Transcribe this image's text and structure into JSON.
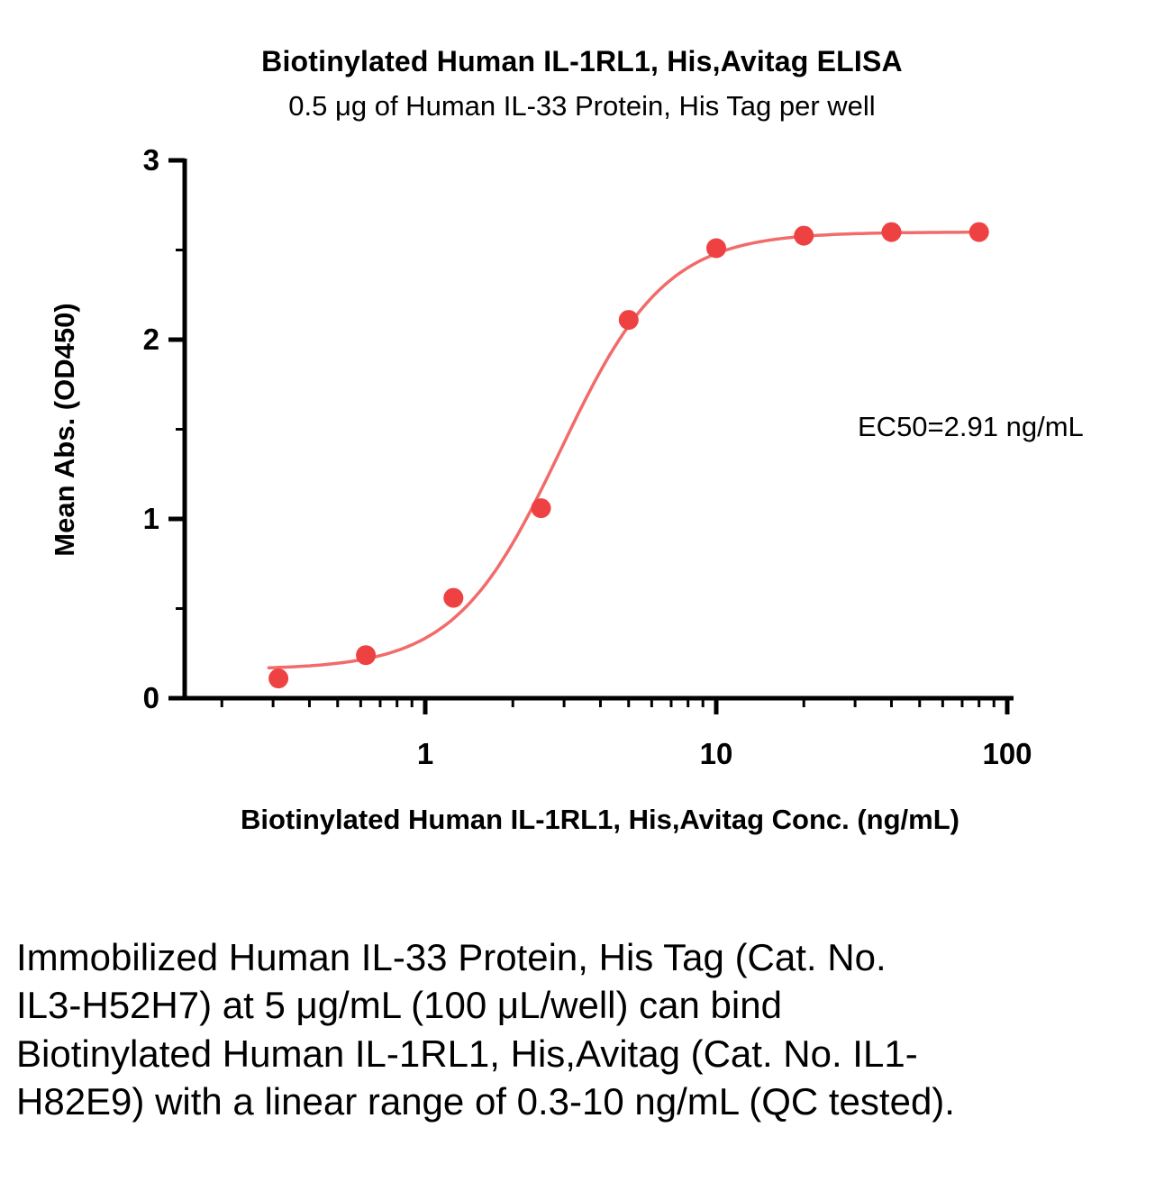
{
  "chart": {
    "title": "Biotinylated Human IL-1RL1, His,Avitag ELISA",
    "subtitle": "0.5 μg of Human IL-33 Protein, His Tag per well",
    "xlabel": "Biotinylated Human IL-1RL1, His,Avitag Conc. (ng/mL)",
    "ylabel": "Mean Abs. (OD450)",
    "annotation": "EC50=2.91 ng/mL"
  },
  "chart_data": {
    "type": "scatter",
    "title": "Biotinylated Human IL-1RL1, His,Avitag ELISA",
    "subtitle": "0.5 μg of Human IL-33 Protein, His Tag per well",
    "xlabel": "Biotinylated Human IL-1RL1, His,Avitag Conc. (ng/mL)",
    "ylabel": "Mean Abs. (OD450)",
    "x_scale": "log10",
    "x": [
      0.313,
      0.625,
      1.25,
      2.5,
      5,
      10,
      20,
      40,
      80
    ],
    "y": [
      0.11,
      0.24,
      0.56,
      1.06,
      2.11,
      2.51,
      2.58,
      2.6,
      2.6
    ],
    "fit_curve": {
      "model": "4PL",
      "bottom": 0.16,
      "top": 2.6,
      "ec50": 2.91,
      "hill": 2.4
    },
    "curve_range": [
      0.29,
      80
    ],
    "ec50_label": "EC50=2.91 ng/mL",
    "x_ticks": [
      1,
      10,
      100
    ],
    "y_ticks": [
      0,
      1,
      2,
      3
    ],
    "y_minor_ticks": [
      0.5,
      1.5,
      2.5
    ],
    "xlim": [
      0.16,
      100
    ],
    "ylim": [
      0,
      3
    ],
    "grid": false,
    "legend": "none",
    "point_color": "#ee4242",
    "curve_color": "#f26b6b",
    "axis_color": "#000000"
  },
  "caption": {
    "text": "Immobilized Human IL-33 Protein, His Tag (Cat. No. IL3-H52H7) at 5 μg/mL (100 μL/well) can bind Biotinylated Human IL-1RL1, His,Avitag (Cat. No. IL1-H82E9) with a linear range of 0.3-10 ng/mL (QC tested)."
  }
}
